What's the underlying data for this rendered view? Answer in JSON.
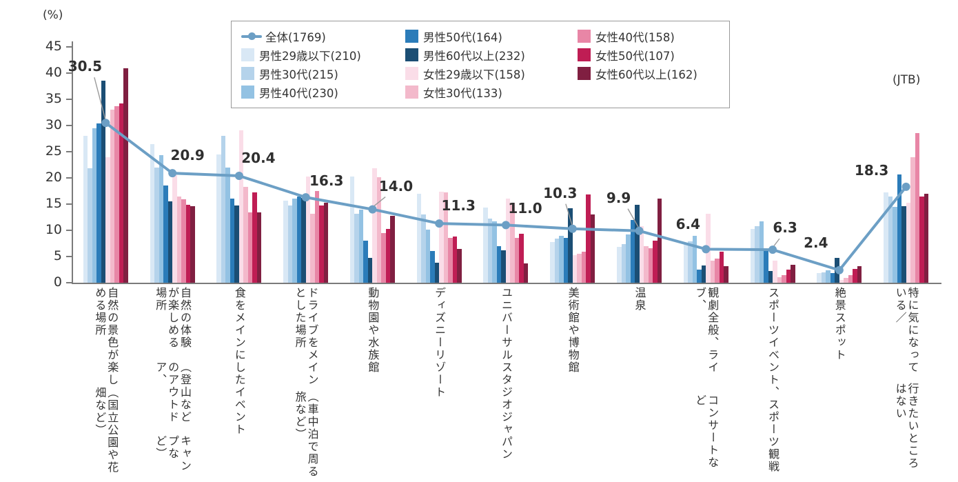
{
  "page": {
    "unit_label": "(%)",
    "source_label": "(JTB)"
  },
  "legend": {
    "items": [
      {
        "label": "全体(1769)",
        "symbol": "line",
        "color": "#6c9fc5"
      },
      {
        "label": "男性29歳以下(210)",
        "symbol": "swatch",
        "color": "#d9e8f5"
      },
      {
        "label": "男性30代(215)",
        "symbol": "swatch",
        "color": "#b5d3eb"
      },
      {
        "label": "男性40代(230)",
        "symbol": "swatch",
        "color": "#93c2e3"
      },
      {
        "label": "男性50代(164)",
        "symbol": "swatch",
        "color": "#2b7cb9"
      },
      {
        "label": "男性60代以上(232)",
        "symbol": "swatch",
        "color": "#1b4e74"
      },
      {
        "label": "女性29歳以下(158)",
        "symbol": "swatch",
        "color": "#fadde8"
      },
      {
        "label": "女性30代(133)",
        "symbol": "swatch",
        "color": "#f3b9cb"
      },
      {
        "label": "女性40代(158)",
        "symbol": "swatch",
        "color": "#e886a6"
      },
      {
        "label": "女性50代(107)",
        "symbol": "swatch",
        "color": "#bf1d54"
      },
      {
        "label": "女性60代以上(162)",
        "symbol": "swatch",
        "color": "#801f41"
      }
    ]
  },
  "chart_data": {
    "type": "bar",
    "title": "",
    "unit": "%",
    "ylim": [
      0,
      45
    ],
    "yticks": [
      0,
      5,
      10,
      15,
      20,
      25,
      30,
      35,
      40,
      45
    ],
    "grid": false,
    "legend_position": "top",
    "categories": [
      {
        "label": "自然の景色が楽しめる場所（国立公園や花畑など）",
        "lines": [
          "自然の景色が楽しめる場所",
          "（国立公園や花畑など）"
        ]
      },
      {
        "label": "自然の体験が楽しめる場所（登山などのアウトドア、キャンプなど）",
        "lines": [
          "自然の体験が楽しめる場所",
          "（登山などのアウトドア、",
          "キャンプなど）"
        ]
      },
      {
        "label": "食をメインにしたイベント",
        "lines": [
          "食をメインにしたイベント"
        ]
      },
      {
        "label": "ドライブをメインとした場所（車中泊で周る旅など）",
        "lines": [
          "ドライブをメインとした場所",
          "（車中泊で周る旅など）"
        ]
      },
      {
        "label": "動物園や水族館",
        "lines": [
          "動物園や水族館"
        ]
      },
      {
        "label": "ディズニーリゾート",
        "lines": [
          "ディズニーリゾート"
        ]
      },
      {
        "label": "ユニバーサルスタジオジャパン",
        "lines": [
          "ユニバーサルスタジオジャパン"
        ]
      },
      {
        "label": "美術館や博物館",
        "lines": [
          "美術館や博物館"
        ]
      },
      {
        "label": "温泉",
        "lines": [
          "温泉"
        ]
      },
      {
        "label": "観劇全般、ライブ、コンサートなど",
        "lines": [
          "観劇全般、ライブ、",
          "コンサートなど"
        ]
      },
      {
        "label": "スポーツイベント、スポーツ観戦",
        "lines": [
          "スポーツイベント、",
          "スポーツ観戦"
        ]
      },
      {
        "label": "絶景スポット",
        "lines": [
          "絶景スポット"
        ]
      },
      {
        "label": "特に気になっている／行きたいところはない",
        "lines": [
          "特に気になっている／",
          "行きたいところはない"
        ]
      }
    ],
    "line_series": {
      "name": "全体(1769)",
      "color": "#6c9fc5",
      "values": [
        30.5,
        20.9,
        20.4,
        16.3,
        14.0,
        11.3,
        11.0,
        10.3,
        9.9,
        6.4,
        6.3,
        2.4,
        18.3
      ],
      "labels": [
        "30.5",
        "20.9",
        "20.4",
        "16.3",
        "14.0",
        "11.3",
        "11.0",
        "10.3",
        "9.9",
        "6.4",
        "6.3",
        "2.4",
        "18.3"
      ]
    },
    "bar_series": [
      {
        "name": "男性29歳以下(210)",
        "color": "#d9e8f5",
        "values": [
          28.0,
          26.5,
          24.5,
          15.6,
          20.3,
          17.0,
          14.3,
          7.7,
          6.8,
          7.5,
          10.3,
          1.8,
          17.3
        ]
      },
      {
        "name": "男性30代(215)",
        "color": "#b5d3eb",
        "values": [
          21.8,
          22.0,
          28.0,
          14.8,
          13.2,
          13.0,
          12.3,
          8.4,
          7.4,
          7.9,
          10.8,
          2.0,
          16.4
        ]
      },
      {
        "name": "男性40代(230)",
        "color": "#93c2e3",
        "values": [
          29.5,
          24.3,
          22.0,
          16.1,
          13.9,
          10.1,
          11.7,
          9.0,
          9.2,
          8.9,
          11.7,
          2.4,
          14.5
        ]
      },
      {
        "name": "男性50代(164)",
        "color": "#2b7cb9",
        "values": [
          30.4,
          18.5,
          16.0,
          16.4,
          8.0,
          6.0,
          7.0,
          8.5,
          12.0,
          2.5,
          6.5,
          1.8,
          20.7
        ]
      },
      {
        "name": "男性60代以上(232)",
        "color": "#1b4e74",
        "values": [
          38.5,
          15.5,
          14.8,
          16.2,
          4.7,
          3.8,
          6.2,
          14.2,
          14.9,
          3.3,
          2.2,
          4.8,
          14.6
        ]
      },
      {
        "name": "女性29歳以下(158)",
        "color": "#fadde8",
        "values": [
          24.0,
          20.5,
          29.1,
          20.3,
          21.8,
          17.4,
          16.1,
          5.3,
          10.8,
          13.2,
          4.2,
          0.5,
          15.2
        ]
      },
      {
        "name": "女性30代(133)",
        "color": "#f3b9cb",
        "values": [
          33.0,
          16.4,
          18.3,
          13.2,
          20.1,
          17.2,
          15.2,
          5.5,
          7.0,
          4.2,
          1.0,
          0.9,
          24.0
        ]
      },
      {
        "name": "女性40代(158)",
        "color": "#e886a6",
        "values": [
          33.7,
          15.9,
          13.4,
          17.5,
          9.5,
          8.6,
          8.6,
          5.9,
          6.6,
          4.6,
          1.5,
          1.5,
          28.6
        ]
      },
      {
        "name": "女性50代(107)",
        "color": "#bf1d54",
        "values": [
          34.2,
          14.9,
          17.3,
          14.8,
          10.3,
          8.8,
          9.4,
          16.9,
          8.0,
          5.9,
          2.5,
          2.6,
          16.5
        ]
      },
      {
        "name": "女性60代以上(162)",
        "color": "#801f41",
        "values": [
          40.9,
          14.6,
          13.4,
          15.2,
          12.8,
          6.4,
          3.7,
          13.0,
          16.0,
          3.1,
          3.4,
          3.2,
          17.0
        ]
      }
    ]
  }
}
